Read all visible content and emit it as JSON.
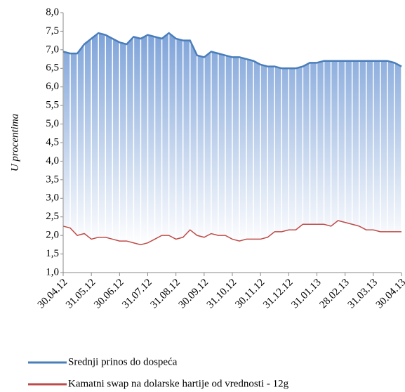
{
  "chart_data": {
    "type": "line",
    "y_label": "U procentima",
    "categories": [
      "30.04.12",
      null,
      null,
      null,
      "31.05.12",
      null,
      null,
      null,
      "30.06.12",
      null,
      null,
      null,
      "31.07.12",
      null,
      null,
      null,
      "31.08.12",
      null,
      null,
      null,
      "30.09.12",
      null,
      null,
      null,
      "31.10.12",
      null,
      null,
      null,
      "30.11.12",
      null,
      null,
      null,
      "31.12.12",
      null,
      null,
      null,
      "31.01.13",
      null,
      null,
      null,
      "28.02.13",
      null,
      null,
      null,
      "31.03.13",
      null,
      null,
      null,
      "30.04.13"
    ],
    "series": [
      {
        "name": "Srednji prinos do dospeća",
        "color": "#4a7ebb",
        "values": [
          6.95,
          6.9,
          6.9,
          7.15,
          7.3,
          7.45,
          7.4,
          7.3,
          7.2,
          7.15,
          7.35,
          7.3,
          7.4,
          7.35,
          7.3,
          7.45,
          7.3,
          7.25,
          7.25,
          6.85,
          6.8,
          6.95,
          6.9,
          6.85,
          6.8,
          6.8,
          6.75,
          6.7,
          6.6,
          6.55,
          6.55,
          6.5,
          6.5,
          6.5,
          6.55,
          6.65,
          6.65,
          6.7,
          6.7,
          6.7,
          6.7,
          6.7,
          6.7,
          6.7,
          6.7,
          6.7,
          6.7,
          6.65,
          6.55
        ]
      },
      {
        "name": "Kamatni swap na dolarske hartije od vrednosti - 12g",
        "color": "#be4b48",
        "values": [
          2.25,
          2.2,
          2.0,
          2.05,
          1.9,
          1.95,
          1.95,
          1.9,
          1.85,
          1.85,
          1.8,
          1.75,
          1.8,
          1.9,
          2.0,
          2.0,
          1.9,
          1.95,
          2.15,
          2.0,
          1.95,
          2.05,
          2.0,
          2.0,
          1.9,
          1.85,
          1.9,
          1.9,
          1.9,
          1.95,
          2.1,
          2.1,
          2.15,
          2.15,
          2.3,
          2.3,
          2.3,
          2.3,
          2.25,
          2.4,
          2.35,
          2.3,
          2.25,
          2.15,
          2.15,
          2.1,
          2.1,
          2.1,
          2.1
        ]
      }
    ],
    "ylim": [
      1,
      8
    ],
    "yticks": [
      {
        "value": 1,
        "label": "1,0"
      },
      {
        "value": 1.5,
        "label": "1,5"
      },
      {
        "value": 2,
        "label": "2,0"
      },
      {
        "value": 2.5,
        "label": "2,5"
      },
      {
        "value": 3,
        "label": "3,0"
      },
      {
        "value": 3.5,
        "label": "3,5"
      },
      {
        "value": 4,
        "label": "4,0"
      },
      {
        "value": 4.5,
        "label": "4,5"
      },
      {
        "value": 5,
        "label": "5,0"
      },
      {
        "value": 5.5,
        "label": "5,5"
      },
      {
        "value": 6,
        "label": "6,0"
      },
      {
        "value": 6.5,
        "label": "6,5"
      },
      {
        "value": 7,
        "label": "7,0"
      },
      {
        "value": 7.5,
        "label": "7,5"
      },
      {
        "value": 8,
        "label": "8,0"
      }
    ],
    "legend": "bottom"
  }
}
